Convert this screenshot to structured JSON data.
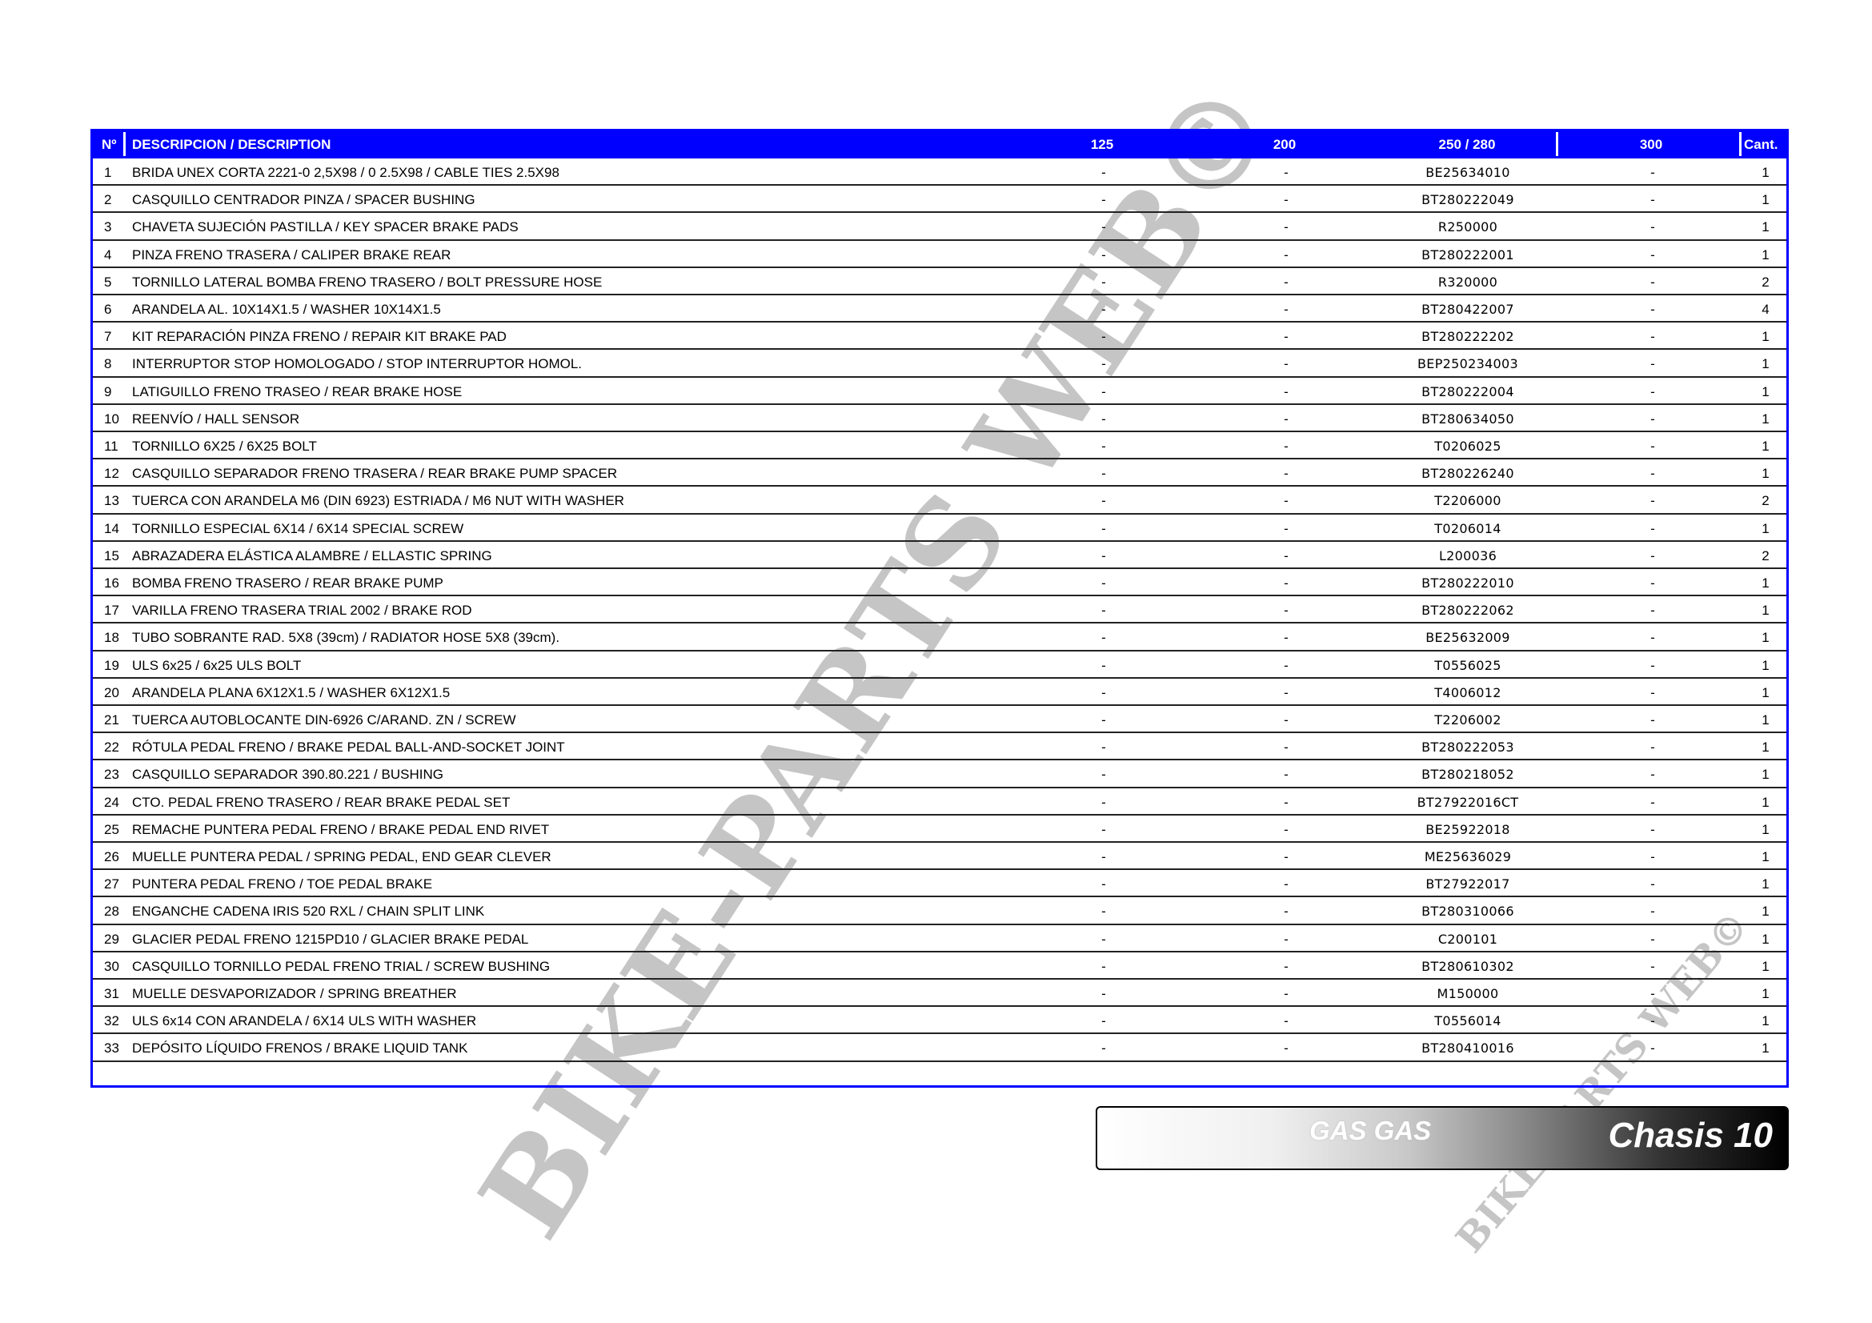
{
  "table": {
    "headers": {
      "num": "Nº",
      "description": "DESCRIPCION / DESCRIPTION",
      "c125": "125",
      "c200": "200",
      "c250": "250 / 280",
      "c300": "300",
      "qty": "Cant."
    },
    "rows": [
      {
        "n": "1",
        "d": "BRIDA UNEX CORTA 2221-0 2,5X98 / 0 2.5X98 / CABLE TIES 2.5X98",
        "c125": "-",
        "c200": "-",
        "c250": "BE25634010",
        "c300": "-",
        "q": "1"
      },
      {
        "n": "2",
        "d": "CASQUILLO CENTRADOR PINZA / SPACER BUSHING",
        "c125": "-",
        "c200": "-",
        "c250": "BT280222049",
        "c300": "-",
        "q": "1"
      },
      {
        "n": "3",
        "d": "CHAVETA SUJECIÓN PASTILLA / KEY SPACER BRAKE PADS",
        "c125": "-",
        "c200": "-",
        "c250": "R250000",
        "c300": "-",
        "q": "1"
      },
      {
        "n": "4",
        "d": "PINZA FRENO TRASERA / CALIPER BRAKE REAR",
        "c125": "-",
        "c200": "-",
        "c250": "BT280222001",
        "c300": "-",
        "q": "1"
      },
      {
        "n": "5",
        "d": "TORNILLO LATERAL BOMBA FRENO TRASERO / BOLT PRESSURE HOSE",
        "c125": "-",
        "c200": "-",
        "c250": "R320000",
        "c300": "-",
        "q": "2"
      },
      {
        "n": "6",
        "d": "ARANDELA AL. 10X14X1.5 / WASHER 10X14X1.5",
        "c125": "-",
        "c200": "-",
        "c250": "BT280422007",
        "c300": "-",
        "q": "4"
      },
      {
        "n": "7",
        "d": "KIT REPARACIÓN PINZA FRENO / REPAIR KIT BRAKE PAD",
        "c125": "-",
        "c200": "-",
        "c250": "BT280222202",
        "c300": "-",
        "q": "1"
      },
      {
        "n": "8",
        "d": "INTERRUPTOR STOP HOMOLOGADO / STOP INTERRUPTOR HOMOL.",
        "c125": "-",
        "c200": "-",
        "c250": "BEP250234003",
        "c300": "-",
        "q": "1"
      },
      {
        "n": "9",
        "d": "LATIGUILLO FRENO TRASEO / REAR BRAKE HOSE",
        "c125": "-",
        "c200": "-",
        "c250": "BT280222004",
        "c300": "-",
        "q": "1"
      },
      {
        "n": "10",
        "d": "REENVÍO / HALL SENSOR",
        "c125": "-",
        "c200": "-",
        "c250": "BT280634050",
        "c300": "-",
        "q": "1"
      },
      {
        "n": "11",
        "d": "TORNILLO 6X25 / 6X25 BOLT",
        "c125": "-",
        "c200": "-",
        "c250": "T0206025",
        "c300": "-",
        "q": "1"
      },
      {
        "n": "12",
        "d": "CASQUILLO SEPARADOR FRENO TRASERA / REAR BRAKE PUMP SPACER",
        "c125": "-",
        "c200": "-",
        "c250": "BT280226240",
        "c300": "-",
        "q": "1"
      },
      {
        "n": "13",
        "d": "TUERCA CON ARANDELA M6 (DIN 6923) ESTRIADA / M6 NUT WITH WASHER",
        "c125": "-",
        "c200": "-",
        "c250": "T2206000",
        "c300": "-",
        "q": "2"
      },
      {
        "n": "14",
        "d": "TORNILLO ESPECIAL 6X14 / 6X14 SPECIAL SCREW",
        "c125": "-",
        "c200": "-",
        "c250": "T0206014",
        "c300": "-",
        "q": "1"
      },
      {
        "n": "15",
        "d": "ABRAZADERA ELÁSTICA ALAMBRE / ELLASTIC SPRING",
        "c125": "-",
        "c200": "-",
        "c250": "L200036",
        "c300": "-",
        "q": "2"
      },
      {
        "n": "16",
        "d": "BOMBA FRENO TRASERO / REAR BRAKE PUMP",
        "c125": "-",
        "c200": "-",
        "c250": "BT280222010",
        "c300": "-",
        "q": "1"
      },
      {
        "n": "17",
        "d": "VARILLA FRENO TRASERA TRIAL 2002 / BRAKE ROD",
        "c125": "-",
        "c200": "-",
        "c250": "BT280222062",
        "c300": "-",
        "q": "1"
      },
      {
        "n": "18",
        "d": "TUBO SOBRANTE RAD. 5X8 (39cm) / RADIATOR HOSE 5X8 (39cm).",
        "c125": "-",
        "c200": "-",
        "c250": "BE25632009",
        "c300": "-",
        "q": "1"
      },
      {
        "n": "19",
        "d": "ULS 6x25 / 6x25 ULS BOLT",
        "c125": "-",
        "c200": "-",
        "c250": "T0556025",
        "c300": "-",
        "q": "1"
      },
      {
        "n": "20",
        "d": "ARANDELA PLANA 6X12X1.5 / WASHER 6X12X1.5",
        "c125": "-",
        "c200": "-",
        "c250": "T4006012",
        "c300": "-",
        "q": "1"
      },
      {
        "n": "21",
        "d": "TUERCA AUTOBLOCANTE DIN-6926 C/ARAND. ZN / SCREW",
        "c125": "-",
        "c200": "-",
        "c250": "T2206002",
        "c300": "-",
        "q": "1"
      },
      {
        "n": "22",
        "d": "RÓTULA PEDAL FRENO / BRAKE PEDAL BALL-AND-SOCKET JOINT",
        "c125": "-",
        "c200": "-",
        "c250": "BT280222053",
        "c300": "-",
        "q": "1"
      },
      {
        "n": "23",
        "d": "CASQUILLO SEPARADOR 390.80.221 / BUSHING",
        "c125": "-",
        "c200": "-",
        "c250": "BT280218052",
        "c300": "-",
        "q": "1"
      },
      {
        "n": "24",
        "d": "CTO. PEDAL FRENO TRASERO / REAR BRAKE PEDAL SET",
        "c125": "-",
        "c200": "-",
        "c250": "BT27922016CT",
        "c300": "-",
        "q": "1"
      },
      {
        "n": "25",
        "d": "REMACHE PUNTERA PEDAL FRENO / BRAKE PEDAL END RIVET",
        "c125": "-",
        "c200": "-",
        "c250": "BE25922018",
        "c300": "-",
        "q": "1"
      },
      {
        "n": "26",
        "d": "MUELLE PUNTERA PEDAL / SPRING PEDAL, END GEAR CLEVER",
        "c125": "-",
        "c200": "-",
        "c250": "ME25636029",
        "c300": "-",
        "q": "1"
      },
      {
        "n": "27",
        "d": "PUNTERA PEDAL FRENO / TOE PEDAL BRAKE",
        "c125": "-",
        "c200": "-",
        "c250": "BT27922017",
        "c300": "-",
        "q": "1"
      },
      {
        "n": "28",
        "d": "ENGANCHE CADENA IRIS 520 RXL / CHAIN SPLIT LINK",
        "c125": "-",
        "c200": "-",
        "c250": "BT280310066",
        "c300": "-",
        "q": "1"
      },
      {
        "n": "29",
        "d": "GLACIER PEDAL FRENO 1215PD10 / GLACIER BRAKE PEDAL",
        "c125": "-",
        "c200": "-",
        "c250": "C200101",
        "c300": "-",
        "q": "1"
      },
      {
        "n": "30",
        "d": "CASQUILLO TORNILLO PEDAL FRENO TRIAL / SCREW BUSHING",
        "c125": "-",
        "c200": "-",
        "c250": "BT280610302",
        "c300": "-",
        "q": "1"
      },
      {
        "n": "31",
        "d": "MUELLE DESVAPORIZADOR / SPRING BREATHER",
        "c125": "-",
        "c200": "-",
        "c250": "M150000",
        "c300": "-",
        "q": "1"
      },
      {
        "n": "32",
        "d": "ULS 6x14 CON ARANDELA / 6X14 ULS WITH WASHER",
        "c125": "-",
        "c200": "-",
        "c250": "T0556014",
        "c300": "-",
        "q": "1"
      },
      {
        "n": "33",
        "d": "DEPÓSITO LÍQUIDO FRENOS / BRAKE LIQUID TANK",
        "c125": "-",
        "c200": "-",
        "c250": "BT280410016",
        "c300": "-",
        "q": "1"
      }
    ]
  },
  "footer": {
    "brand": "GAS GAS",
    "section": "Chasis 10"
  },
  "watermark": {
    "text": "BIKE-PARTS WEB©"
  },
  "colors": {
    "header": "#0000ff",
    "row_rule": "#222222",
    "watermark": "#969696"
  }
}
